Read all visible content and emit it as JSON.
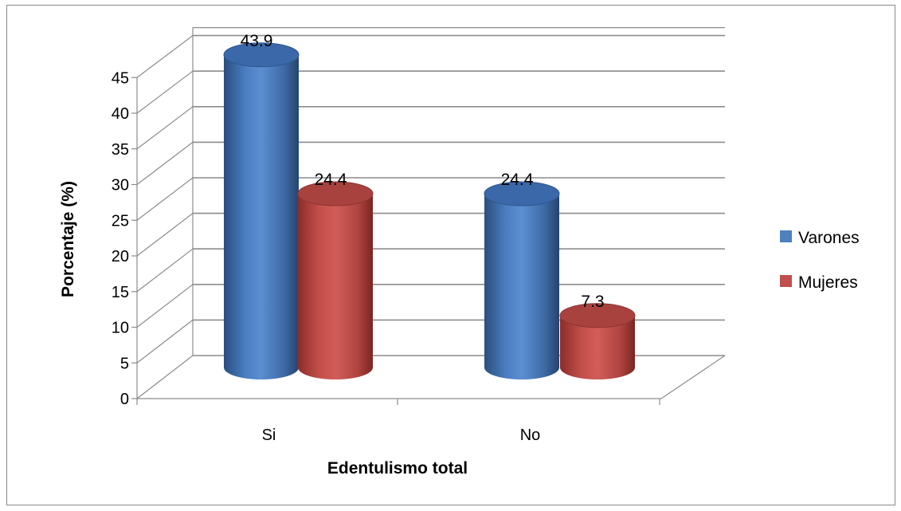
{
  "chart_data": {
    "type": "bar",
    "style": "3d-cylinder",
    "categories": [
      "Si",
      "No"
    ],
    "series": [
      {
        "name": "Varones",
        "values": [
          43.9,
          24.4
        ],
        "color": "#4f81bd"
      },
      {
        "name": "Mujeres",
        "values": [
          24.4,
          7.3
        ],
        "color": "#c0504d"
      }
    ],
    "value_labels": [
      [
        "43.9",
        "24.4"
      ],
      [
        "24.4",
        "7.3"
      ]
    ],
    "xlabel": "Edentulismo total",
    "ylabel": "Porcentaje (%)",
    "ylim": [
      0,
      45
    ],
    "yticks": [
      0,
      5,
      10,
      15,
      20,
      25,
      30,
      35,
      40,
      45
    ],
    "grid": true,
    "legend_position": "right"
  }
}
